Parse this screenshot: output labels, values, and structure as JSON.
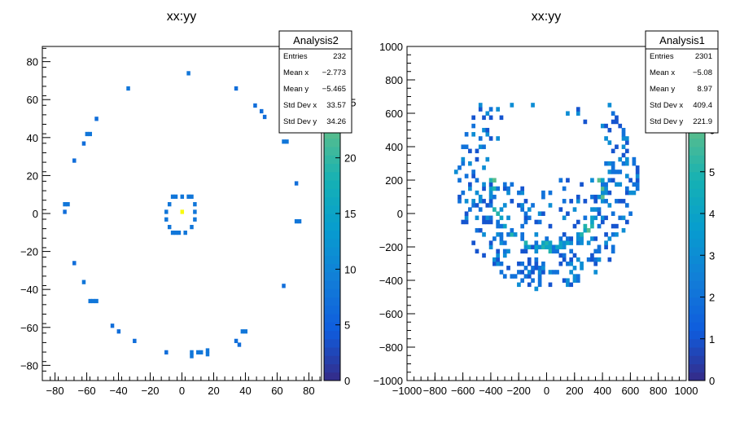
{
  "chart_data": [
    {
      "type": "heatmap",
      "title": "xx:yy",
      "xlim": [
        -88,
        88
      ],
      "ylim": [
        -88,
        88
      ],
      "x_ticks": [
        -80,
        -60,
        -40,
        -20,
        0,
        20,
        40,
        60,
        80
      ],
      "y_ticks": [
        -80,
        -60,
        -40,
        -20,
        0,
        20,
        40,
        60,
        80
      ],
      "colorbar": {
        "min": 0,
        "max": 30,
        "ticks": [
          0,
          5,
          10,
          15,
          20,
          25
        ]
      },
      "stats": {
        "name": "Analysis2",
        "rows": [
          {
            "label": "Entries",
            "value": "232"
          },
          {
            "label": "Mean x",
            "value": "−2.773"
          },
          {
            "label": "Mean y",
            "value": "−5.465"
          },
          {
            "label": "Std Dev x",
            "value": "33.57"
          },
          {
            "label": "Std Dev y",
            "value": "34.26"
          }
        ]
      },
      "points": [
        {
          "x": -34,
          "y": 66,
          "v": 8
        },
        {
          "x": 4,
          "y": 74,
          "v": 8
        },
        {
          "x": 34,
          "y": 66,
          "v": 7
        },
        {
          "x": 46,
          "y": 57,
          "v": 7
        },
        {
          "x": 50,
          "y": 54,
          "v": 7
        },
        {
          "x": 52,
          "y": 51,
          "v": 7
        },
        {
          "x": -54,
          "y": 50,
          "v": 7
        },
        {
          "x": -60,
          "y": 42,
          "v": 8
        },
        {
          "x": -58,
          "y": 42,
          "v": 8
        },
        {
          "x": -62,
          "y": 37,
          "v": 7
        },
        {
          "x": 64,
          "y": 38,
          "v": 8
        },
        {
          "x": 66,
          "y": 38,
          "v": 8
        },
        {
          "x": -68,
          "y": 28,
          "v": 7
        },
        {
          "x": 72,
          "y": 16,
          "v": 7
        },
        {
          "x": -74,
          "y": 5,
          "v": 8
        },
        {
          "x": -72,
          "y": 5,
          "v": 8
        },
        {
          "x": -74,
          "y": 1,
          "v": 7
        },
        {
          "x": 72,
          "y": -4,
          "v": 8
        },
        {
          "x": 74,
          "y": -4,
          "v": 8
        },
        {
          "x": -68,
          "y": -26,
          "v": 7
        },
        {
          "x": -62,
          "y": -36,
          "v": 8
        },
        {
          "x": 64,
          "y": -38,
          "v": 7
        },
        {
          "x": -58,
          "y": -46,
          "v": 8
        },
        {
          "x": -56,
          "y": -46,
          "v": 8
        },
        {
          "x": -54,
          "y": -46,
          "v": 8
        },
        {
          "x": -44,
          "y": -59,
          "v": 7
        },
        {
          "x": -40,
          "y": -62,
          "v": 7
        },
        {
          "x": 38,
          "y": -62,
          "v": 8
        },
        {
          "x": 40,
          "y": -62,
          "v": 8
        },
        {
          "x": -30,
          "y": -67,
          "v": 7
        },
        {
          "x": 34,
          "y": -67,
          "v": 7
        },
        {
          "x": 36,
          "y": -69,
          "v": 7
        },
        {
          "x": -10,
          "y": -73,
          "v": 7
        },
        {
          "x": 6,
          "y": -73,
          "v": 8
        },
        {
          "x": 6,
          "y": -75,
          "v": 8
        },
        {
          "x": 10,
          "y": -73,
          "v": 8
        },
        {
          "x": 12,
          "y": -73,
          "v": 8
        },
        {
          "x": 16,
          "y": -72,
          "v": 8
        },
        {
          "x": 16,
          "y": -74,
          "v": 8
        },
        {
          "x": -6,
          "y": 9,
          "v": 8
        },
        {
          "x": -4,
          "y": 9,
          "v": 8
        },
        {
          "x": 0,
          "y": 9,
          "v": 8
        },
        {
          "x": 4,
          "y": 9,
          "v": 8
        },
        {
          "x": 6,
          "y": 9,
          "v": 8
        },
        {
          "x": -8,
          "y": 5,
          "v": 8
        },
        {
          "x": 8,
          "y": 5,
          "v": 8
        },
        {
          "x": -10,
          "y": 1,
          "v": 8
        },
        {
          "x": 8,
          "y": 1,
          "v": 8
        },
        {
          "x": -10,
          "y": -3,
          "v": 8
        },
        {
          "x": 8,
          "y": -3,
          "v": 8
        },
        {
          "x": -8,
          "y": -7,
          "v": 8
        },
        {
          "x": 6,
          "y": -7,
          "v": 8
        },
        {
          "x": -6,
          "y": -10,
          "v": 8
        },
        {
          "x": -4,
          "y": -10,
          "v": 8
        },
        {
          "x": -2,
          "y": -10,
          "v": 8
        },
        {
          "x": 2,
          "y": -10,
          "v": 8
        },
        {
          "x": 0,
          "y": 1,
          "v": 30
        }
      ]
    },
    {
      "type": "heatmap",
      "title": "xx:yy",
      "xlim": [
        -1000,
        1000
      ],
      "ylim": [
        -1000,
        1000
      ],
      "x_ticks": [
        -1000,
        -800,
        -600,
        -400,
        -200,
        0,
        200,
        400,
        600,
        800,
        1000
      ],
      "y_ticks": [
        -1000,
        -800,
        -600,
        -400,
        -200,
        0,
        200,
        400,
        600,
        800,
        1000
      ],
      "colorbar": {
        "min": 0,
        "max": 8,
        "ticks": [
          0,
          1,
          2,
          3,
          4,
          5,
          6,
          7
        ]
      },
      "stats": {
        "name": "Analysis1",
        "rows": [
          {
            "label": "Entries",
            "value": "2301"
          },
          {
            "label": "Mean x",
            "value": "−5.08"
          },
          {
            "label": "Mean y",
            "value": "8.97"
          },
          {
            "label": "Std Dev x",
            "value": "409.4"
          },
          {
            "label": "Std Dev y",
            "value": "221.9"
          }
        ]
      },
      "distribution": "crescent bands: outer radius ~620, inner radii ~420 and ~220 around centre (0,200), open above y~200"
    }
  ]
}
